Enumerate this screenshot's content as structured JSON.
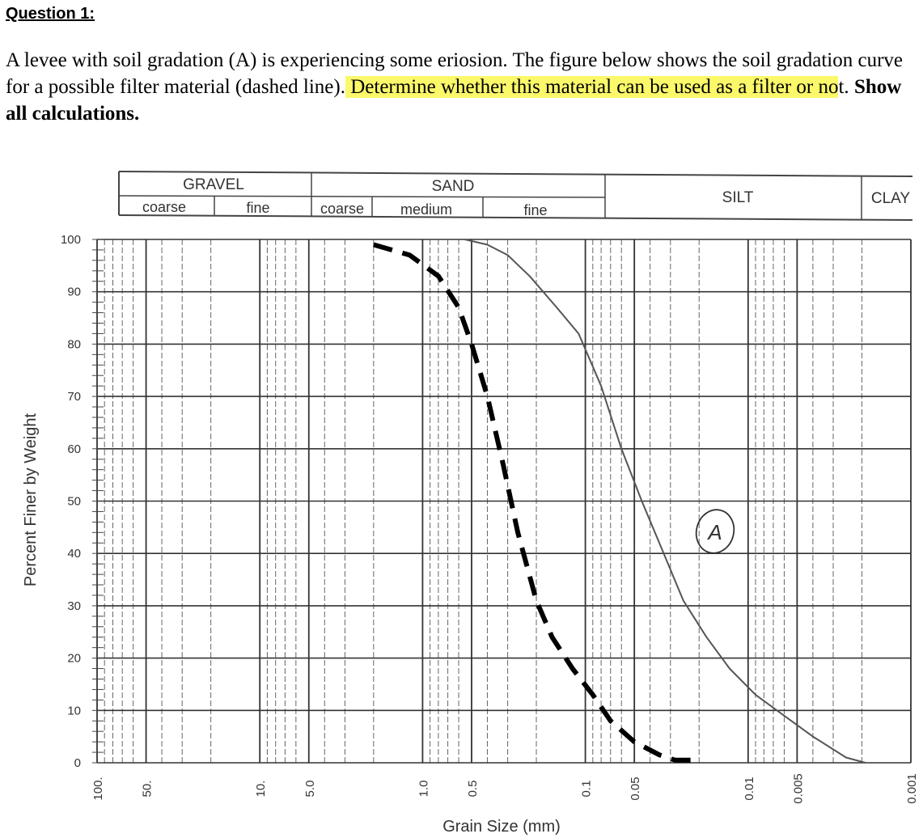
{
  "question": {
    "heading": "Question 1:",
    "text_1": "A levee with soil gradation (A) is experiencing some eriosion. The figure below shows the soil gradation curve for a possible filter material (dashed line).",
    "text_highlight_1": " Determine whether this material can be used as a filter or no",
    "text_2": "t. ",
    "text_bold": "Show all calculations."
  },
  "classification": {
    "gravel": "GRAVEL",
    "sand": "SAND",
    "silt": "SILT",
    "clay": "CLAY",
    "gravel_coarse": "coarse",
    "gravel_fine": "fine",
    "sand_coarse": "coarse",
    "sand_medium": "medium",
    "sand_fine": "fine"
  },
  "chart_data": {
    "type": "line",
    "xlabel": "Grain Size (mm)",
    "ylabel": "Percent Finer by Weight",
    "x_scale": "log",
    "x_reversed": true,
    "xlim": [
      100,
      0.001
    ],
    "ylim": [
      0,
      100
    ],
    "y_ticks": [
      0,
      10,
      20,
      30,
      40,
      50,
      60,
      70,
      80,
      90,
      100
    ],
    "x_ticks": [
      {
        "value": 100,
        "label": "100."
      },
      {
        "value": 50,
        "label": "50."
      },
      {
        "value": 10,
        "label": "10."
      },
      {
        "value": 5,
        "label": "5.0"
      },
      {
        "value": 1,
        "label": "1.0"
      },
      {
        "value": 0.5,
        "label": "0.5"
      },
      {
        "value": 0.1,
        "label": "0.1"
      },
      {
        "value": 0.05,
        "label": "0.05"
      },
      {
        "value": 0.01,
        "label": "0.01"
      },
      {
        "value": 0.005,
        "label": "0.005"
      },
      {
        "value": 0.001,
        "label": "0.001"
      }
    ],
    "grid": true,
    "series": [
      {
        "name": "A",
        "style": "solid",
        "color": "#555555",
        "points": [
          [
            0.55,
            100
          ],
          [
            0.4,
            99
          ],
          [
            0.3,
            97
          ],
          [
            0.22,
            93
          ],
          [
            0.15,
            87
          ],
          [
            0.11,
            82
          ],
          [
            0.08,
            72
          ],
          [
            0.06,
            60
          ],
          [
            0.045,
            50
          ],
          [
            0.033,
            40
          ],
          [
            0.025,
            31
          ],
          [
            0.018,
            24
          ],
          [
            0.013,
            18
          ],
          [
            0.009,
            13
          ],
          [
            0.006,
            9
          ],
          [
            0.004,
            5
          ],
          [
            0.0025,
            1
          ],
          [
            0.0019,
            0
          ]
        ]
      },
      {
        "name": "",
        "style": "dashed",
        "color": "#000000",
        "points": [
          [
            2.0,
            99
          ],
          [
            1.2,
            97
          ],
          [
            0.8,
            93
          ],
          [
            0.6,
            87
          ],
          [
            0.5,
            80
          ],
          [
            0.4,
            70
          ],
          [
            0.32,
            57
          ],
          [
            0.26,
            44
          ],
          [
            0.2,
            31
          ],
          [
            0.16,
            24
          ],
          [
            0.12,
            18
          ],
          [
            0.09,
            13
          ],
          [
            0.07,
            8
          ],
          [
            0.05,
            4
          ],
          [
            0.035,
            1.5
          ],
          [
            0.028,
            0.5
          ],
          [
            0.022,
            0.5
          ]
        ]
      }
    ]
  }
}
